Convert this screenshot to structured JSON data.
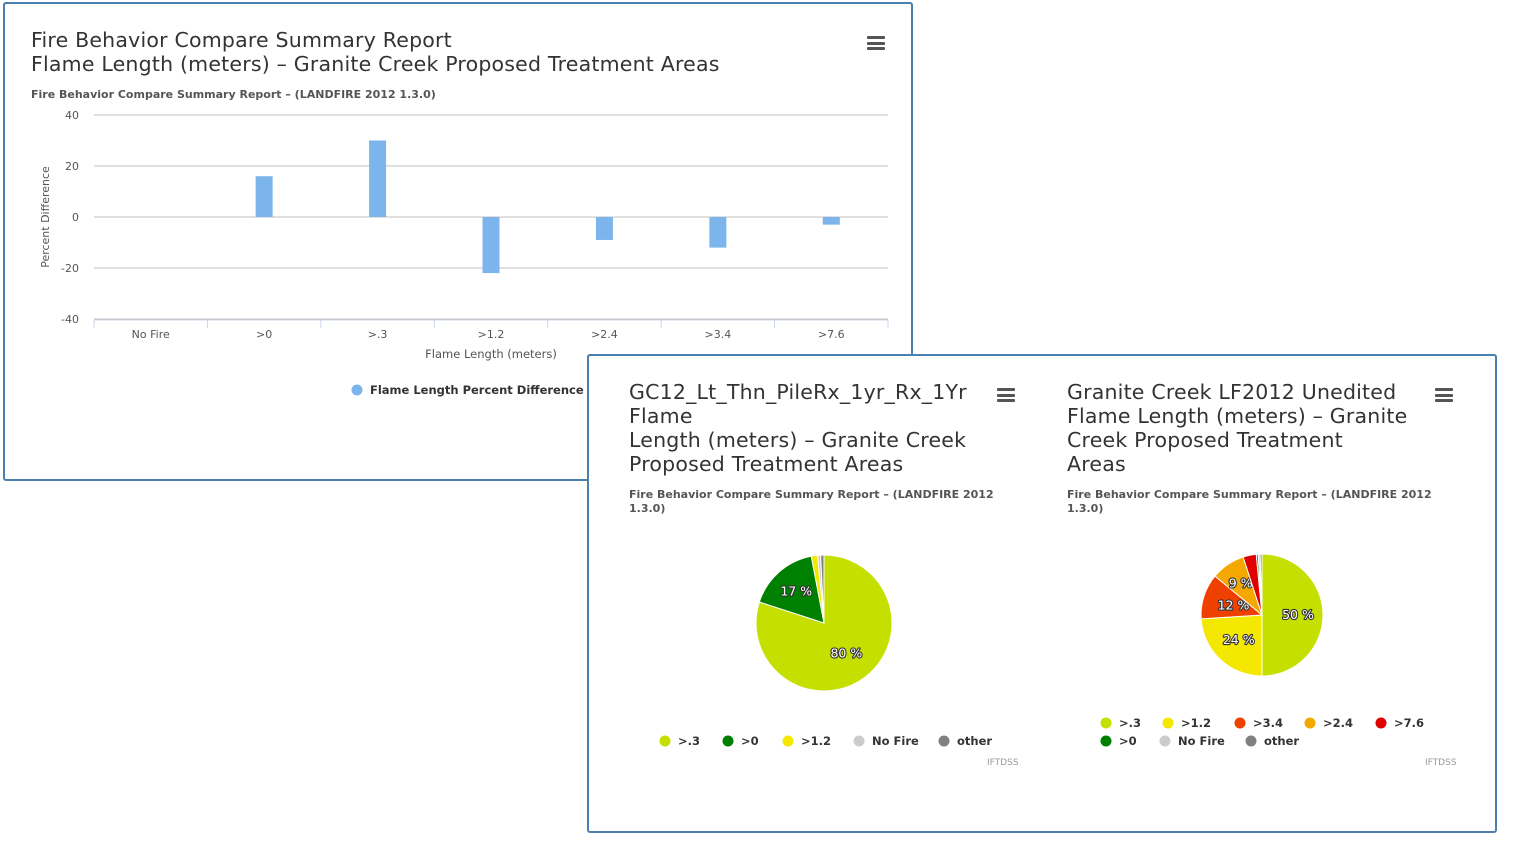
{
  "colors": {
    "bar": "#7cb5ec",
    "grid": "#c0c0c0",
    "border": "#4a7fb0",
    ">.3": "#c5e000",
    ">0": "#008000",
    ">1.2": "#f5e800",
    ">2.4": "#f5a800",
    ">3.4": "#f04000",
    ">7.6": "#e00000",
    "No Fire": "#cccccc",
    "other": "#808080"
  },
  "bar_panel": {
    "title_line1": "Fire Behavior Compare Summary Report",
    "title_line2": "Flame Length (meters) – Granite Creek Proposed Treatment Areas",
    "subtitle": "Fire Behavior Compare Summary Report – (LANDFIRE 2012 1.3.0)",
    "menu_icon": "hamburger-menu-icon"
  },
  "pie_left": {
    "title_line1": "GC12_Lt_Thn_PileRx_1yr_Rx_1Yr",
    "title_line2": "Flame",
    "title_line3": "Length (meters) – Granite Creek",
    "title_line4": "Proposed Treatment Areas",
    "subtitle_line1": "Fire Behavior Compare Summary Report – (LANDFIRE 2012",
    "subtitle_line2": "1.3.0)",
    "credit": "IFTDSS",
    "menu_icon": "hamburger-menu-icon"
  },
  "pie_right": {
    "title_line1": "Granite Creek LF2012 Unedited",
    "title_line2": "Flame Length (meters) – Granite",
    "title_line3": "Creek Proposed Treatment",
    "title_line4": "Areas",
    "subtitle_line1": "Fire Behavior Compare Summary Report – (LANDFIRE 2012",
    "subtitle_line2": "1.3.0)",
    "credit": "IFTDSS",
    "menu_icon": "hamburger-menu-icon"
  },
  "chart_data": [
    {
      "type": "bar",
      "title": "Fire Behavior Compare Summary Report Flame Length (meters) – Granite Creek Proposed Treatment Areas",
      "subtitle": "Fire Behavior Compare Summary Report – (LANDFIRE 2012 1.3.0)",
      "categories": [
        "No Fire",
        ">0",
        ">.3",
        ">1.2",
        ">2.4",
        ">3.4",
        ">7.6"
      ],
      "series": [
        {
          "name": "Flame Length Percent Difference",
          "values": [
            0,
            16,
            30,
            -22,
            -9,
            -12,
            -3
          ]
        }
      ],
      "xlabel": "Flame Length (meters)",
      "ylabel": "Percent Difference",
      "ylim": [
        -40,
        40
      ],
      "yticks": [
        40,
        20,
        0,
        -20,
        -40
      ],
      "grid": true,
      "legend": "bottom"
    },
    {
      "type": "pie",
      "title": "GC12_Lt_Thn_PileRx_1yr_Rx_1Yr Flame Length (meters) – Granite Creek Proposed Treatment Areas",
      "slices": [
        {
          "name": ">.3",
          "value": 80,
          "label": "80 %"
        },
        {
          "name": ">0",
          "value": 17,
          "label": "17 %"
        },
        {
          "name": ">1.2",
          "value": 1.5,
          "label": ""
        },
        {
          "name": "No Fire",
          "value": 0.7,
          "label": ""
        },
        {
          "name": "other",
          "value": 0.8,
          "label": ""
        }
      ],
      "legend": "bottom"
    },
    {
      "type": "pie",
      "title": "Granite Creek LF2012 Unedited Flame Length (meters) – Granite Creek Proposed Treatment Areas",
      "slices": [
        {
          "name": ">.3",
          "value": 50,
          "label": "50 %"
        },
        {
          "name": ">1.2",
          "value": 24,
          "label": "24 %"
        },
        {
          "name": ">3.4",
          "value": 12,
          "label": "12 %"
        },
        {
          "name": ">2.4",
          "value": 9,
          "label": "9 %"
        },
        {
          "name": ">7.6",
          "value": 3.5,
          "label": ""
        },
        {
          "name": ">0",
          "value": 0.5,
          "label": ""
        },
        {
          "name": "No Fire",
          "value": 0.5,
          "label": ""
        },
        {
          "name": "other",
          "value": 0.5,
          "label": ""
        }
      ],
      "legend_rows": [
        [
          ">.3",
          ">1.2",
          ">3.4",
          ">2.4",
          ">7.6"
        ],
        [
          ">0",
          "No Fire",
          "other"
        ]
      ],
      "legend": "bottom"
    }
  ]
}
